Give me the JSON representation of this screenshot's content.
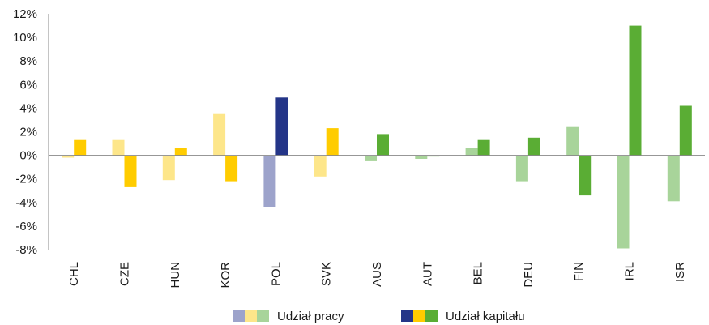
{
  "chart_data": {
    "type": "bar",
    "categories": [
      "CHL",
      "CZE",
      "HUN",
      "KOR",
      "POL",
      "SVK",
      "AUS",
      "AUT",
      "BEL",
      "DEU",
      "FIN",
      "IRL",
      "ISR"
    ],
    "series": [
      {
        "name": "Udział pracy",
        "values": [
          -0.2,
          1.3,
          -2.1,
          3.5,
          -4.4,
          -1.8,
          -0.5,
          -0.3,
          0.6,
          -2.2,
          2.4,
          -7.9,
          -3.9
        ]
      },
      {
        "name": "Udział kapitału",
        "values": [
          1.3,
          -2.7,
          0.6,
          -2.2,
          4.9,
          2.3,
          1.8,
          -0.1,
          1.3,
          1.5,
          -3.4,
          11.0,
          4.2
        ]
      }
    ],
    "group_colors": {
      "labour": [
        "#fde68a",
        "#fde68a",
        "#fde68a",
        "#fde68a",
        "#9da3cb",
        "#fde68a",
        "#a8d49a",
        "#a8d49a",
        "#a8d49a",
        "#a8d49a",
        "#a8d49a",
        "#a8d49a",
        "#a8d49a"
      ],
      "capital": [
        "#ffcc00",
        "#ffcc00",
        "#ffcc00",
        "#ffcc00",
        "#243588",
        "#ffcc00",
        "#5aad34",
        "#5aad34",
        "#5aad34",
        "#5aad34",
        "#5aad34",
        "#5aad34",
        "#5aad34"
      ]
    },
    "legend_swatches": {
      "labour": [
        "#9da3cb",
        "#fde68a",
        "#a8d49a"
      ],
      "capital": [
        "#243588",
        "#ffcc00",
        "#5aad34"
      ]
    },
    "ylim": [
      -8,
      12
    ],
    "y_ticks": [
      12,
      10,
      8,
      6,
      4,
      2,
      0,
      -2,
      -4,
      -6,
      -8
    ],
    "y_tick_labels": [
      "12%",
      "10%",
      "8%",
      "6%",
      "4%",
      "2%",
      "0%",
      "-2%",
      "-4%",
      "-6%",
      "-8%"
    ],
    "grid": false,
    "legend_position": "bottom",
    "title": "",
    "xlabel": "",
    "ylabel": ""
  }
}
